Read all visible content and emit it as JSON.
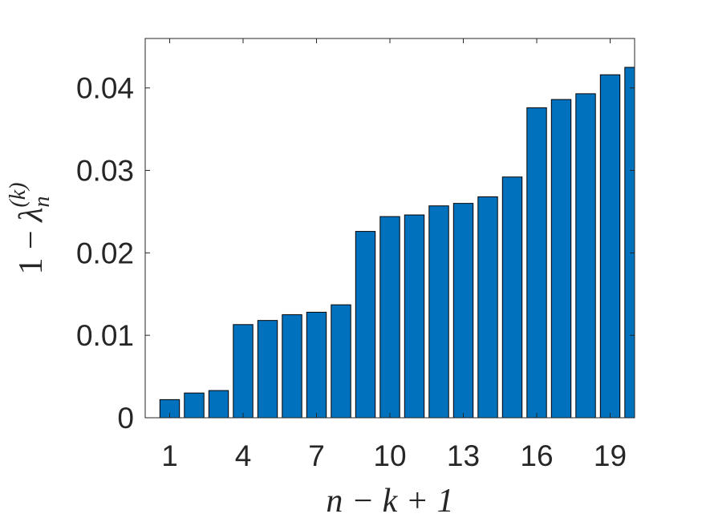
{
  "chart_data": {
    "type": "bar",
    "xlabel": "n − k + 1",
    "ylabel": {
      "main": "1 − ",
      "symbol": "λ",
      "sub": "n",
      "sup": "(k)"
    },
    "x": [
      1,
      2,
      3,
      4,
      5,
      6,
      7,
      8,
      9,
      10,
      11,
      12,
      13,
      14,
      15,
      16,
      17,
      18,
      19,
      20
    ],
    "values": [
      0.0022,
      0.003,
      0.0033,
      0.0113,
      0.0118,
      0.0125,
      0.0128,
      0.0137,
      0.0226,
      0.0244,
      0.0246,
      0.0257,
      0.026,
      0.0268,
      0.0292,
      0.0376,
      0.0386,
      0.0393,
      0.0416,
      0.0425
    ],
    "color": "#0072bd",
    "xlim": [
      0,
      20
    ],
    "xticks": [
      1,
      4,
      7,
      10,
      13,
      16,
      19
    ],
    "ylim": [
      0,
      0.046
    ],
    "yticks": [
      0,
      0.01,
      0.02,
      0.03,
      0.04
    ],
    "grid": false
  }
}
